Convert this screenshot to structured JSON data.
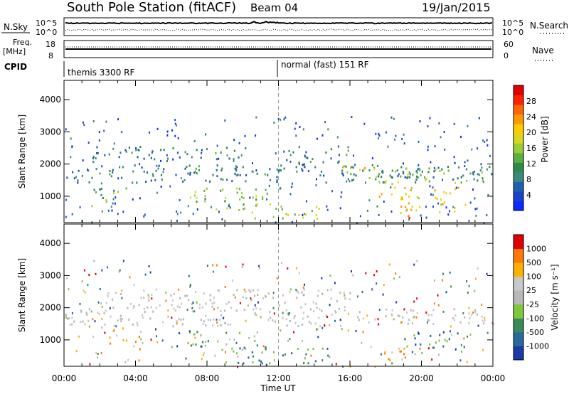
{
  "header": {
    "title": "South Pole Station (fitACF)",
    "beam": "Beam 04",
    "date": "19/Jan/2015"
  },
  "top_panels": {
    "nsky_label": "N.Sky",
    "nsearch_label": "N.Search",
    "nsky_ticks": [
      "10^5",
      "10^0"
    ],
    "nsearch_ticks": [
      "10^5",
      "10^0"
    ],
    "freq_label_1": "Freq.",
    "freq_label_2": "[MHz]",
    "freq_ticks": [
      "18",
      "8"
    ],
    "nave_label": "Nave",
    "nave_ticks": [
      "60",
      "0"
    ],
    "cpid_label": "CPID",
    "cpid_segments": [
      "themis 3300 RF",
      "normal (fast) 151 RF"
    ]
  },
  "chart_data": [
    {
      "type": "heatmap",
      "title": "",
      "ylabel": "Slant Range [km]",
      "xlabel": "",
      "x_ticks": [
        "00:00",
        "04:00",
        "08:00",
        "12:00",
        "16:00",
        "20:00",
        "00:00"
      ],
      "xlim_hours": [
        0,
        24
      ],
      "y_ticks": [
        1000,
        2000,
        3000,
        4000
      ],
      "ylim_km": [
        180,
        4600
      ],
      "colorbar": {
        "label": "Power [dB]",
        "ticks": [
          "28",
          "24",
          "20",
          "16",
          "12",
          "8",
          "4"
        ],
        "range": [
          0,
          30
        ],
        "colors": [
          "#0a2bff",
          "#1a44c8",
          "#2060b0",
          "#3a8a7a",
          "#2f8a4a",
          "#5ab040",
          "#9ccc3a",
          "#d8d820",
          "#ffcc00",
          "#ff9900",
          "#ff6600",
          "#ff2200",
          "#e00000"
        ]
      },
      "bands": [
        {
          "t0": 0.0,
          "t1": 24.0,
          "r0": 1450,
          "r1": 2000,
          "level": 8
        },
        {
          "t0": 1.5,
          "t1": 10.5,
          "r0": 2100,
          "r1": 2600,
          "level": 8
        },
        {
          "t0": 1.5,
          "t1": 3.5,
          "r0": 700,
          "r1": 1300,
          "level": 12
        },
        {
          "t0": 7.0,
          "t1": 11.5,
          "r0": 600,
          "r1": 1300,
          "level": 14
        },
        {
          "t0": 9.5,
          "t1": 14.5,
          "r0": 300,
          "r1": 800,
          "level": 16
        },
        {
          "t0": 15.5,
          "t1": 17.5,
          "r0": 1500,
          "r1": 2000,
          "level": 18
        },
        {
          "t0": 17.5,
          "t1": 23.5,
          "r0": 1400,
          "r1": 1900,
          "level": 13
        },
        {
          "t0": 17.5,
          "t1": 22.5,
          "r0": 500,
          "r1": 1300,
          "level": 20
        },
        {
          "t0": 18.0,
          "t1": 19.3,
          "r0": 250,
          "r1": 500,
          "level": 28
        },
        {
          "t0": 12.0,
          "t1": 16.0,
          "r0": 2000,
          "r1": 2600,
          "level": 8
        }
      ]
    },
    {
      "type": "heatmap",
      "title": "",
      "ylabel": "Slant Range [km]",
      "xlabel": "Time UT",
      "x_ticks": [
        "00:00",
        "04:00",
        "08:00",
        "12:00",
        "16:00",
        "20:00",
        "00:00"
      ],
      "xlim_hours": [
        0,
        24
      ],
      "y_ticks": [
        1000,
        2000,
        3000,
        4000
      ],
      "ylim_km": [
        180,
        4600
      ],
      "colorbar": {
        "label": "Velocity [m s⁻¹]",
        "ticks": [
          "1000",
          "500",
          "100",
          "25",
          "-25",
          "-100",
          "-500",
          "-1000"
        ],
        "colors": [
          "#1a3aa8",
          "#2a6a9a",
          "#3a8a5a",
          "#7ec83a",
          "#b8b8b8",
          "#c8c8c8",
          "#ffb000",
          "#ff7a00",
          "#e00000"
        ]
      },
      "bands": [
        {
          "t0": 0.0,
          "t1": 24.0,
          "r0": 1450,
          "r1": 2000,
          "level": "gray"
        },
        {
          "t0": 2.0,
          "t1": 16.0,
          "r0": 2000,
          "r1": 2600,
          "level": "gray"
        },
        {
          "t0": 2.5,
          "t1": 4.3,
          "r0": 700,
          "r1": 1400,
          "level": "orange"
        },
        {
          "t0": 7.0,
          "t1": 11.5,
          "r0": 600,
          "r1": 1300,
          "level": "green"
        },
        {
          "t0": 9.5,
          "t1": 14.5,
          "r0": 300,
          "r1": 800,
          "level": "darkgreen"
        },
        {
          "t0": 17.8,
          "t1": 19.3,
          "r0": 250,
          "r1": 800,
          "level": "orange"
        },
        {
          "t0": 19.0,
          "t1": 22.5,
          "r0": 600,
          "r1": 1300,
          "level": "darkgreen"
        }
      ]
    }
  ]
}
